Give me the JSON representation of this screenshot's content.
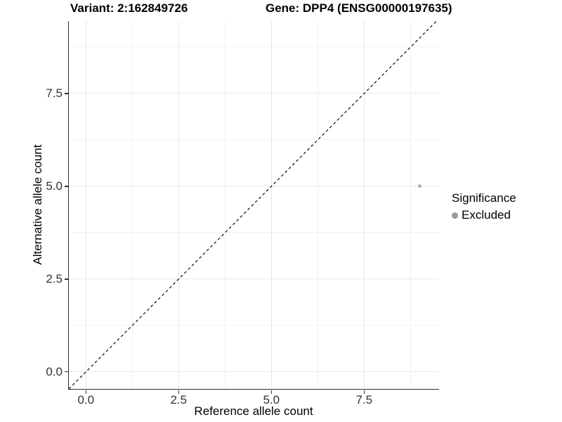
{
  "titles": {
    "variant": "Variant: 2:162849726",
    "gene": "Gene: DPP4 (ENSG00000197635)"
  },
  "chart_data": {
    "type": "scatter",
    "xlabel": "Reference allele count",
    "ylabel": "Alternative allele count",
    "xlim": [
      -0.46,
      9.52
    ],
    "ylim": [
      -0.46,
      9.45
    ],
    "x_ticks": {
      "values": [
        0,
        2.5,
        5,
        7.5
      ],
      "labels": [
        "0.0",
        "2.5",
        "5.0",
        "7.5"
      ]
    },
    "y_ticks": {
      "values": [
        0,
        2.5,
        5,
        7.5
      ],
      "labels": [
        "0.0",
        "2.5",
        "5.0",
        "7.5"
      ]
    },
    "x_minor_ticks": [
      1.25,
      3.75,
      6.25,
      8.75
    ],
    "y_minor_ticks": [
      1.25,
      3.75,
      6.25,
      8.75
    ],
    "grid": true,
    "points": [
      {
        "x": 9,
        "y": 5,
        "significance": "Excluded"
      }
    ],
    "reference_line": {
      "type": "identity",
      "slope": 1,
      "intercept": 0,
      "style": "dashed",
      "color": "#1a1a1a"
    },
    "legend": {
      "position": "right",
      "title": "Significance",
      "items": [
        {
          "label": "Excluded",
          "color": "#9a9a9a"
        }
      ]
    },
    "colors": {
      "point": "#b3b3b3",
      "grid_major": "#e7e7e7",
      "grid_minor": "#f2f2f2",
      "axis_line": "#2e2e2e",
      "tick": "#333333",
      "tick_text": "#333333"
    }
  }
}
